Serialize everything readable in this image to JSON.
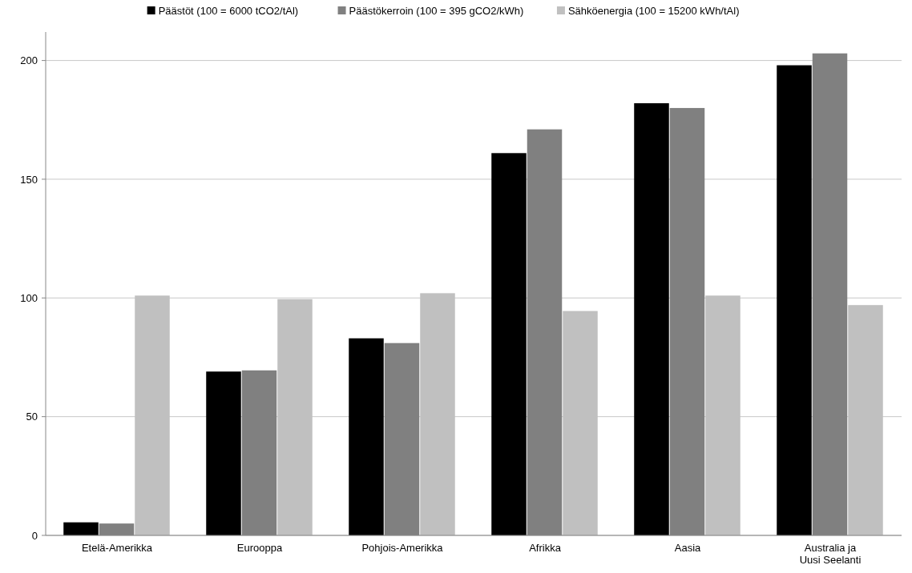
{
  "chart_data": {
    "type": "bar",
    "categories": [
      "Etelä-Amerikka",
      "Eurooppa",
      "Pohjois-Amerikka",
      "Afrikka",
      "Aasia",
      "Australia ja Uusi Seelanti"
    ],
    "series": [
      {
        "name": "Päästöt (100 = 6000 tCO2/tAl)",
        "color": "#000000",
        "values": [
          5.5,
          69,
          83,
          161,
          182,
          198
        ]
      },
      {
        "name": "Päästökerroin (100 = 395 gCO2/kWh)",
        "color": "#808080",
        "values": [
          5,
          69.5,
          81,
          171,
          180,
          203
        ]
      },
      {
        "name": "Sähköenergia (100 = 15200 kWh/tAl)",
        "color": "#c0c0c0",
        "values": [
          101,
          99.5,
          102,
          94.5,
          101,
          97
        ]
      }
    ],
    "ylim": [
      0,
      212
    ],
    "yticks": [
      0,
      50,
      100,
      150,
      200
    ],
    "grid": "y",
    "legend": "top"
  }
}
